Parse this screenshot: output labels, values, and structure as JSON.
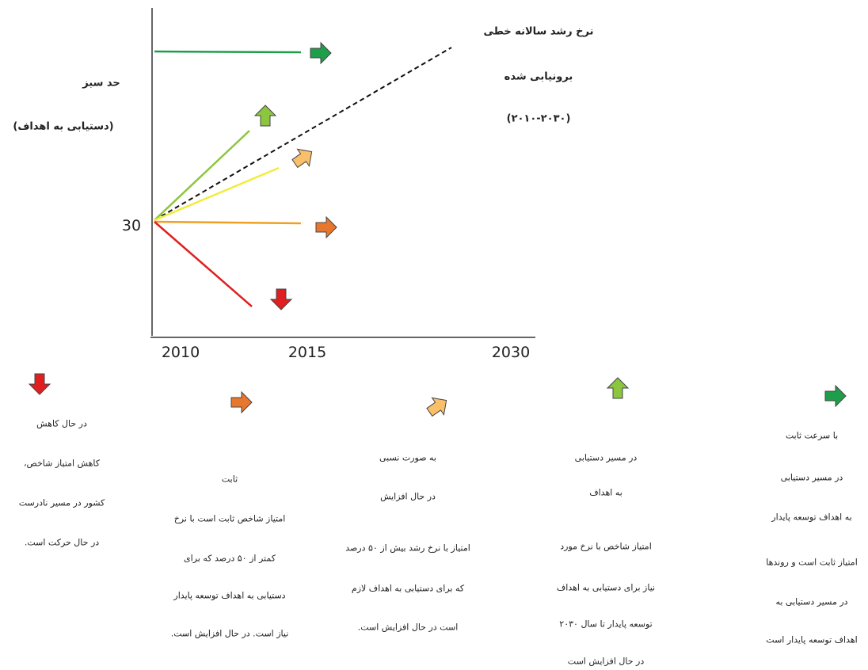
{
  "chart": {
    "title_lines": [
      "نرخ رشد سالانه خطی",
      "برونیابی شده",
      "(۲۰۱۰-۲۰۳۰)"
    ],
    "green_limit_lines": [
      "حد سبز",
      "(دستیابی به اهداف)"
    ],
    "y_label": "30",
    "x_labels": [
      "2010",
      "2015",
      "2030"
    ]
  },
  "legend": [
    {
      "lines": [
        "در حال کاهش",
        "کاهش امتیاز شاخص،",
        "کشور در مسیر نادرست",
        "در حال حرکت است."
      ]
    },
    {
      "lines": [
        "ثابت",
        "امتیاز شاخص ثابت است با نرخ",
        "کمتر از ۵۰ درصد که برای",
        "دستیابی به اهداف توسعه پایدار",
        "نیاز است. در حال افزایش است."
      ]
    },
    {
      "lines": [
        "به صورت نسبی",
        "در حال افزایش",
        "امتیاز با نرخ رشد بیش از ۵۰ درصد",
        "که برای دستیابی به اهداف لازم",
        "است در حال افزایش است."
      ]
    },
    {
      "lines": [
        "در مسیر دستیابی",
        "به اهداف",
        "امتیاز شاخص با نرخ مورد",
        "نیاز برای دستیابی به اهداف",
        "توسعه پایدار تا سال ۲۰۳۰",
        "در حال افزایش است"
      ]
    },
    {
      "lines": [
        "با سرعت ثابت",
        "در مسیر دستیابی",
        "به اهداف توسعه پایدار",
        "امتیاز ثابت است و روندها",
        "در مسیر دستیابی به",
        "اهداف توسعه پایدار است"
      ]
    }
  ]
}
